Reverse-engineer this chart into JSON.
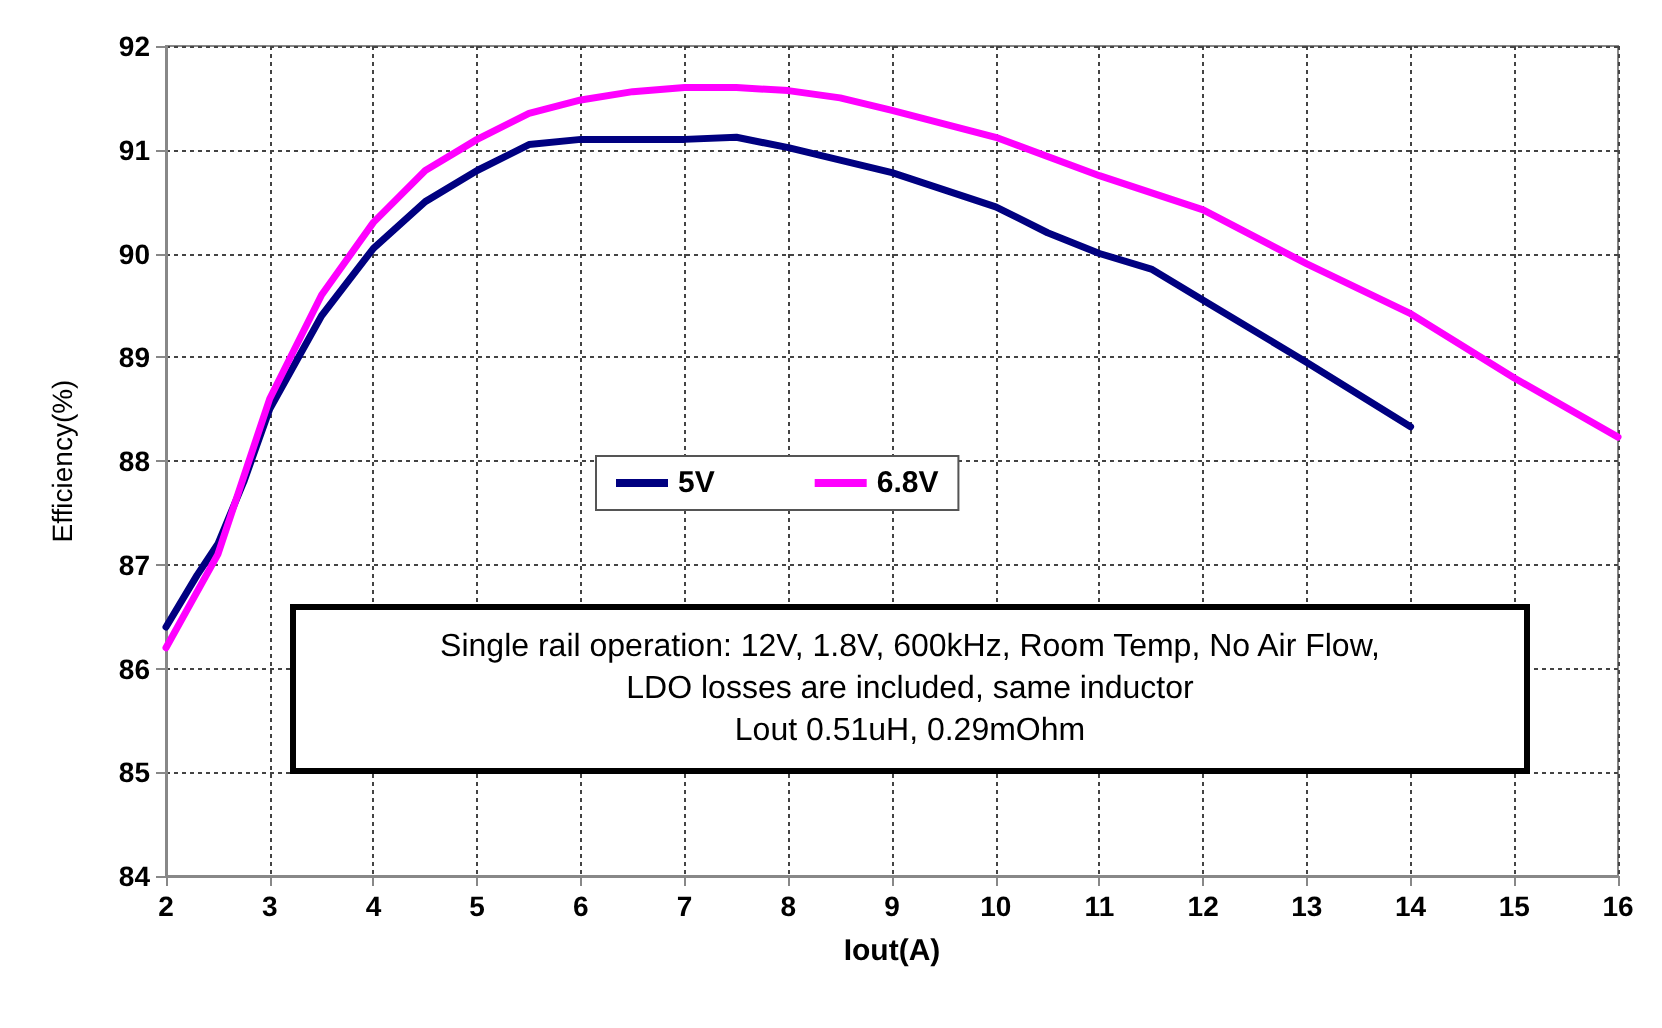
{
  "chart_data": {
    "type": "line",
    "xlabel": "Iout(A)",
    "ylabel": "Efficiency(%)",
    "xlim": [
      2,
      16
    ],
    "xticks": [
      2,
      3,
      4,
      5,
      6,
      7,
      8,
      9,
      10,
      11,
      12,
      13,
      14,
      15,
      16
    ],
    "ylim": [
      84,
      92
    ],
    "yticks": [
      84,
      85,
      86,
      87,
      88,
      89,
      90,
      91,
      92
    ],
    "grid": true,
    "legend": "center",
    "marker": "none",
    "line_style": "solid",
    "annotations": [
      "Single rail operation: 12V, 1.8V, 600kHz, Room Temp, No Air Flow,\nLDO losses are included, same inductor\nLout 0.51uH, 0.29mOhm"
    ],
    "series": [
      {
        "name": "5V",
        "color": "#000080",
        "x": [
          2,
          2.3,
          2.5,
          2.75,
          3,
          3.5,
          4,
          4.5,
          5,
          5.5,
          6,
          7,
          7.5,
          8,
          9,
          10,
          10.5,
          11,
          11.5,
          12,
          13,
          14
        ],
        "values": [
          86.4,
          86.9,
          87.2,
          87.8,
          88.5,
          89.4,
          90.05,
          90.5,
          90.8,
          91.05,
          91.1,
          91.1,
          91.12,
          91.02,
          90.78,
          90.45,
          90.2,
          90.0,
          89.85,
          89.55,
          88.95,
          88.33
        ]
      },
      {
        "name": "6.8V",
        "color": "#ff00ff",
        "x": [
          2,
          2.5,
          3,
          3.5,
          4,
          4.5,
          5,
          5.5,
          6,
          6.5,
          7,
          7.5,
          8,
          8.5,
          9,
          10,
          11,
          12,
          13,
          14,
          15,
          16
        ],
        "values": [
          86.2,
          87.1,
          88.6,
          89.6,
          90.3,
          90.8,
          91.1,
          91.35,
          91.48,
          91.56,
          91.6,
          91.6,
          91.57,
          91.5,
          91.38,
          91.12,
          90.75,
          90.42,
          89.9,
          89.42,
          88.8,
          88.23
        ]
      }
    ]
  }
}
